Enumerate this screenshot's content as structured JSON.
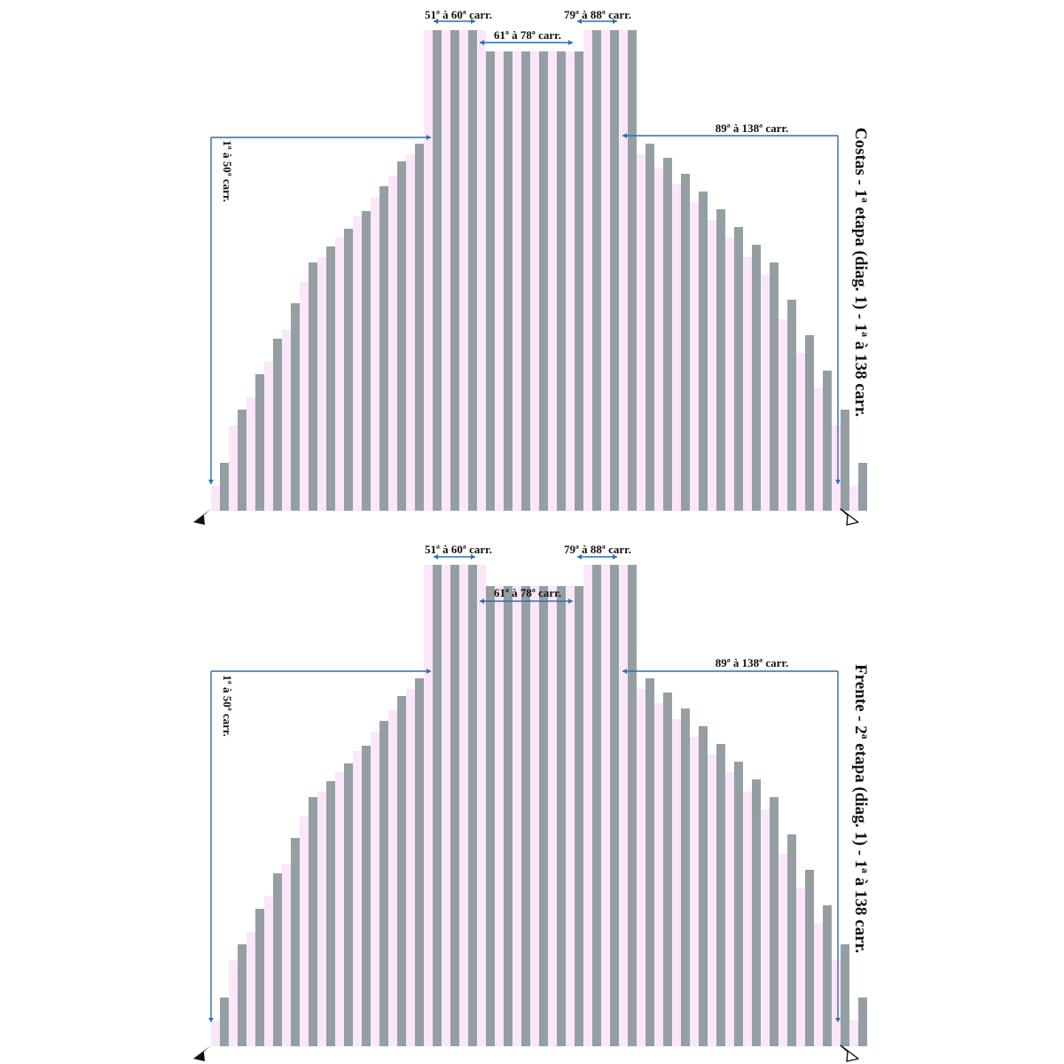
{
  "colors": {
    "gray_stitch": "#959fa3",
    "pink_stitch": "#fbe6fa",
    "guide_line": "#2b6fb2",
    "arrow_dark": "#111111",
    "arrow_light": "#ffffff",
    "text": "#111111"
  },
  "panels": [
    {
      "id": "costas",
      "title": "Costas - 1ª etapa (diag. 1) - 1ª à 138 carr.",
      "labels": {
        "top_left": "51ª à 60ª carr.",
        "top_middle": "61ª à 78ª carr.",
        "top_right": "79ª à 88ª carr.",
        "left_side": "1ª à 50ª carr.",
        "right_side": "89ª à 138ª carr."
      },
      "icons": {
        "start_arrow": "dark-arrowhead-icon",
        "end_arrow": "outline-arrowhead-icon"
      }
    },
    {
      "id": "frente",
      "title": "Frente - 2ª etapa (diag. 1) - 1ª à 138 carr.",
      "labels": {
        "top_left": "51ª à 60ª carr.",
        "top_middle": "61ª à 78ª carr.",
        "top_right": "79ª à 88ª carr.",
        "left_side": "1ª à 50ª carr.",
        "right_side": "89ª à 138ª carr."
      },
      "icons": {
        "start_arrow": "dark-arrowhead-icon",
        "end_arrow": "outline-arrowhead-icon"
      }
    }
  ]
}
